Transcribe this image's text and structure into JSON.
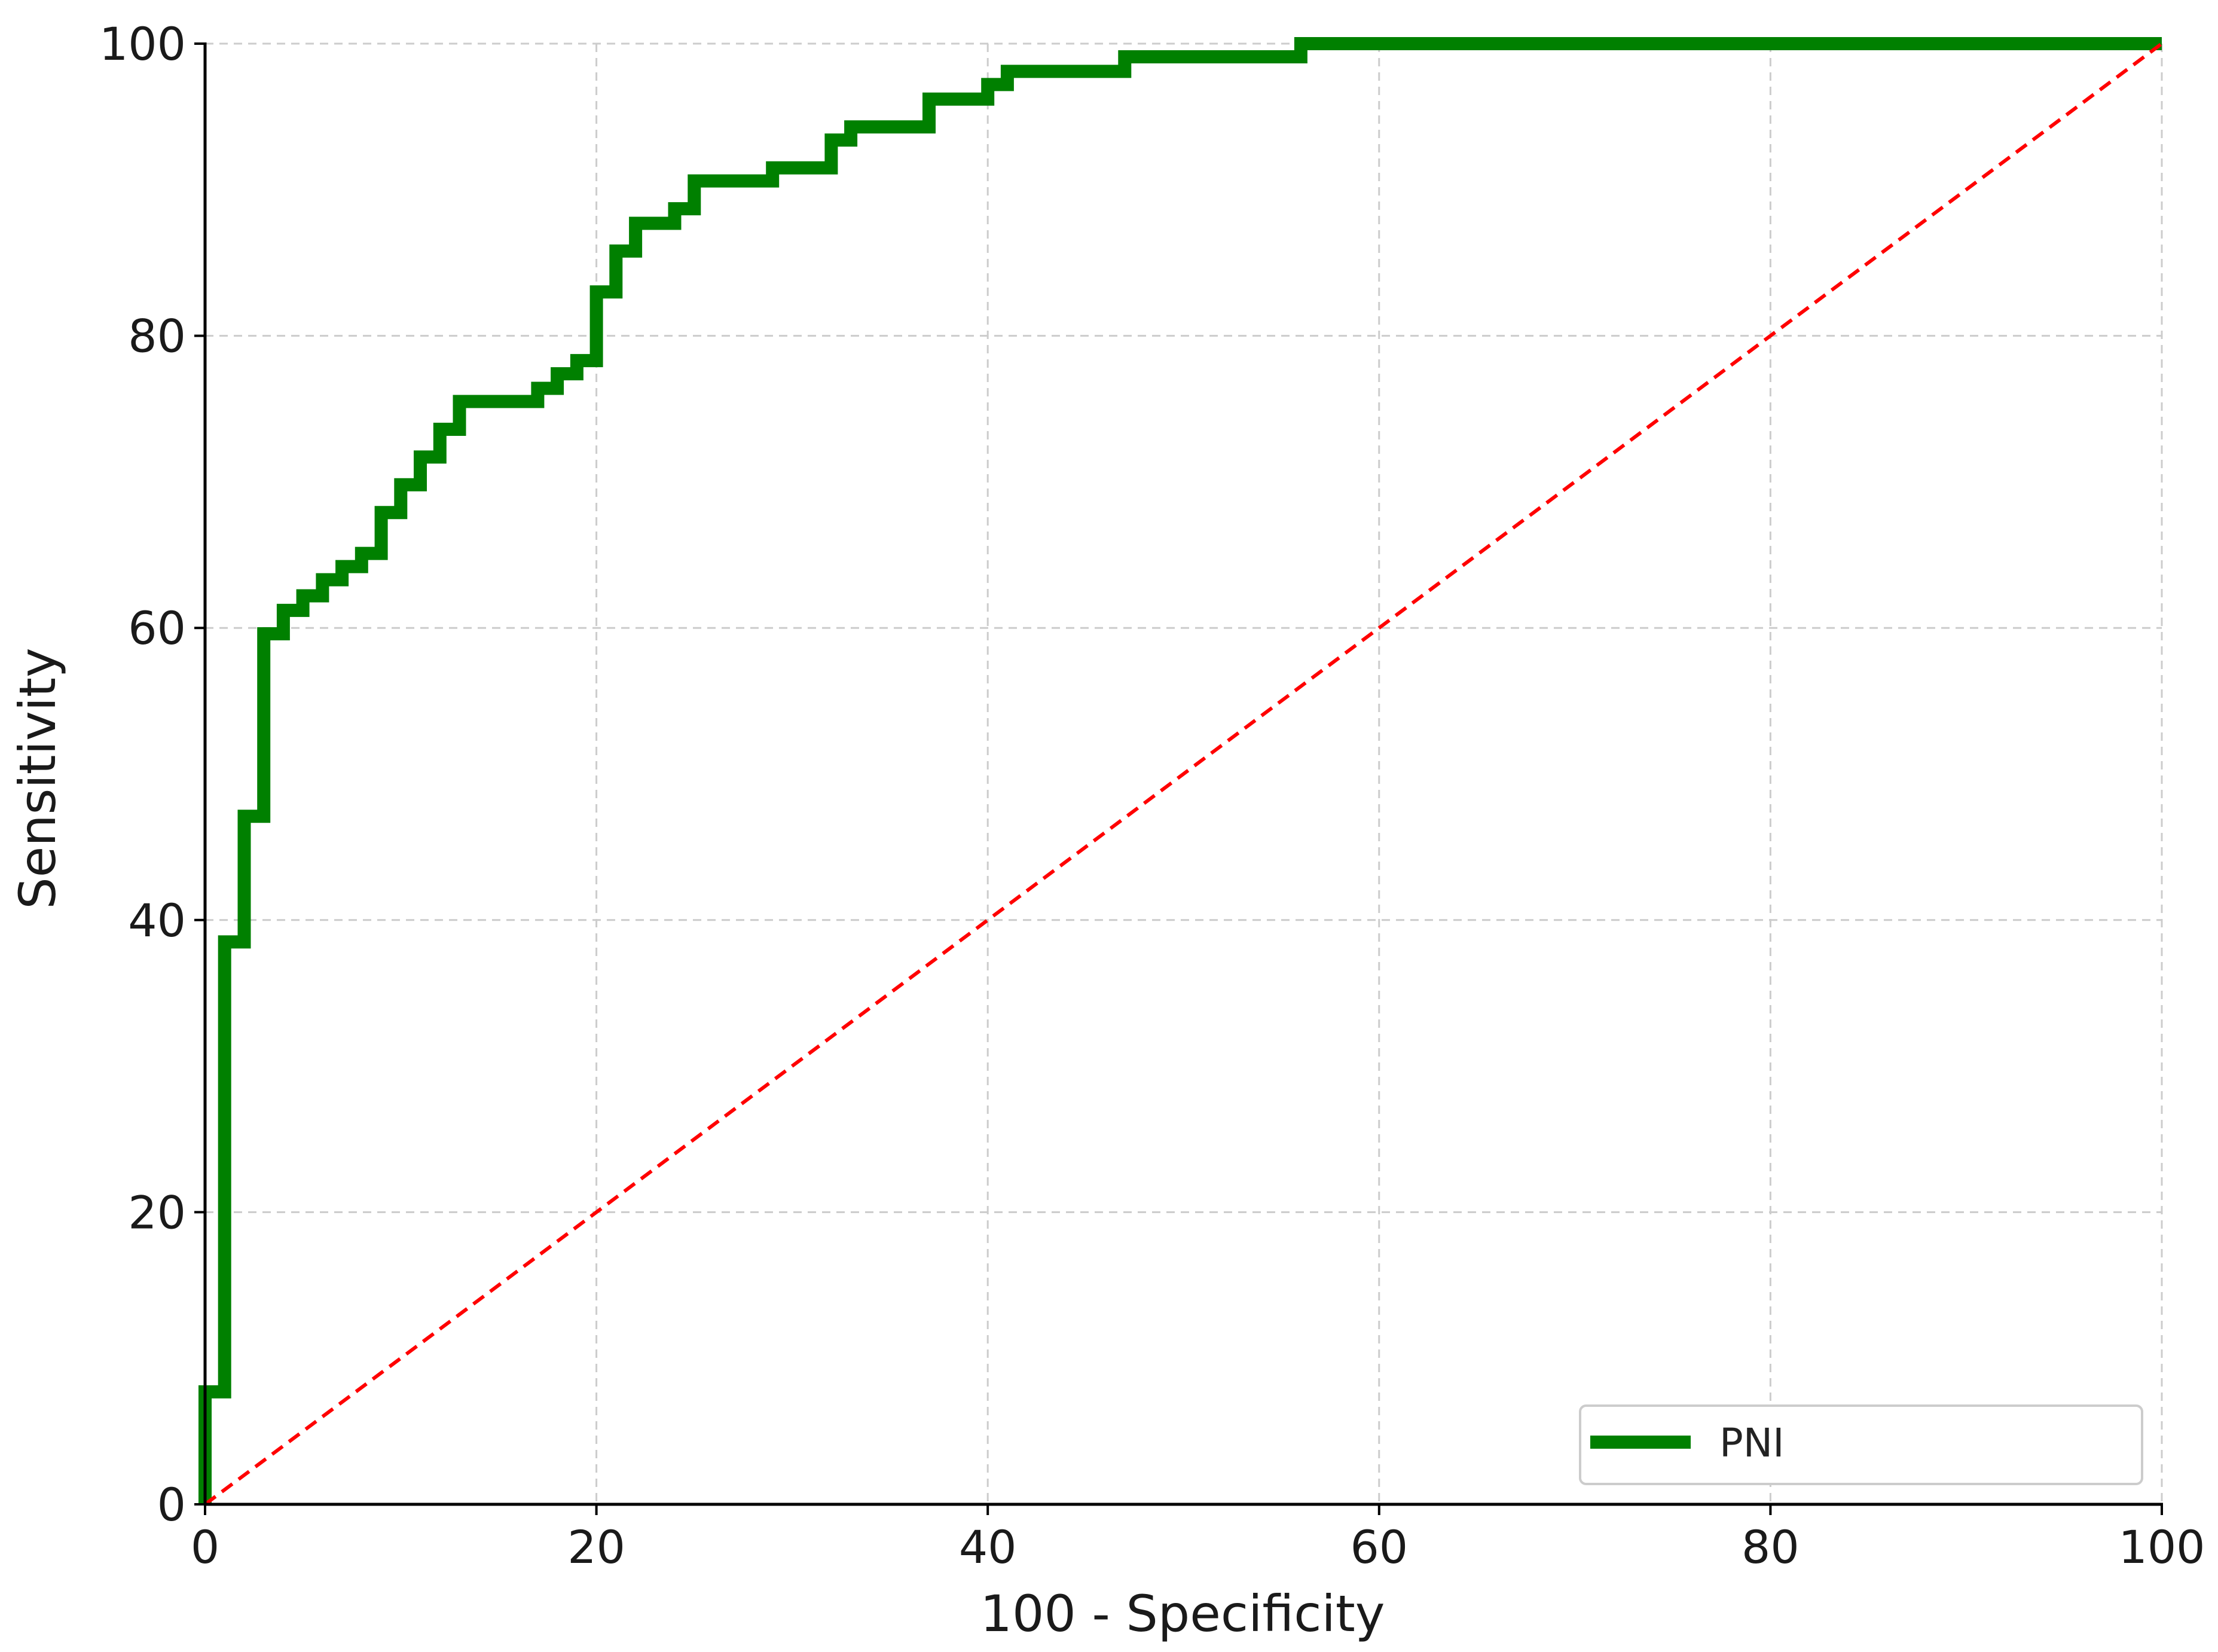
{
  "chart_data": {
    "type": "line",
    "title": "",
    "xlabel": "100 - Specificity",
    "ylabel": "Sensitivity",
    "xlim": [
      0,
      100
    ],
    "ylim": [
      0,
      100
    ],
    "xticks": [
      0,
      20,
      40,
      60,
      80,
      100
    ],
    "yticks": [
      0,
      20,
      40,
      60,
      80,
      100
    ],
    "xtick_labels": [
      "0",
      "20",
      "40",
      "60",
      "80",
      "100"
    ],
    "ytick_labels": [
      "0",
      "20",
      "40",
      "60",
      "80",
      "100"
    ],
    "grid": true,
    "legend_position": "bottom-right",
    "series": [
      {
        "name": "PNI",
        "color": "#008000",
        "style": "step",
        "x": [
          0,
          0,
          1,
          1,
          2,
          2,
          3,
          3,
          4,
          4,
          5,
          5,
          6,
          6,
          7,
          7,
          8,
          8,
          9,
          9,
          10,
          10,
          11,
          11,
          12,
          12,
          13,
          13,
          14,
          14,
          17,
          17,
          18,
          18,
          19,
          19,
          20,
          20,
          21,
          21,
          22,
          22,
          24,
          24,
          25,
          25,
          29,
          29,
          32,
          32,
          33,
          33,
          37,
          37,
          40,
          40,
          41,
          41,
          47,
          47,
          56,
          56,
          100
        ],
        "y": [
          0,
          7.7,
          7.7,
          38.5,
          38.5,
          47.1,
          47.1,
          59.6,
          59.6,
          61.2,
          61.2,
          62.2,
          62.2,
          63.3,
          63.3,
          64.2,
          64.2,
          65.1,
          65.1,
          67.9,
          67.9,
          69.8,
          69.8,
          71.7,
          71.7,
          73.6,
          73.6,
          75.5,
          75.5,
          75.5,
          75.5,
          76.4,
          76.4,
          77.4,
          77.4,
          78.3,
          78.3,
          83.0,
          83.0,
          85.8,
          85.8,
          87.7,
          87.7,
          88.7,
          88.7,
          90.6,
          90.6,
          91.5,
          91.5,
          93.4,
          93.4,
          94.3,
          94.3,
          96.2,
          96.2,
          97.2,
          97.2,
          98.1,
          98.1,
          99.1,
          99.1,
          100,
          100
        ]
      },
      {
        "name": "",
        "color": "#ff0000",
        "style": "dashed",
        "x": [
          0,
          100
        ],
        "y": [
          0,
          100
        ]
      }
    ]
  }
}
